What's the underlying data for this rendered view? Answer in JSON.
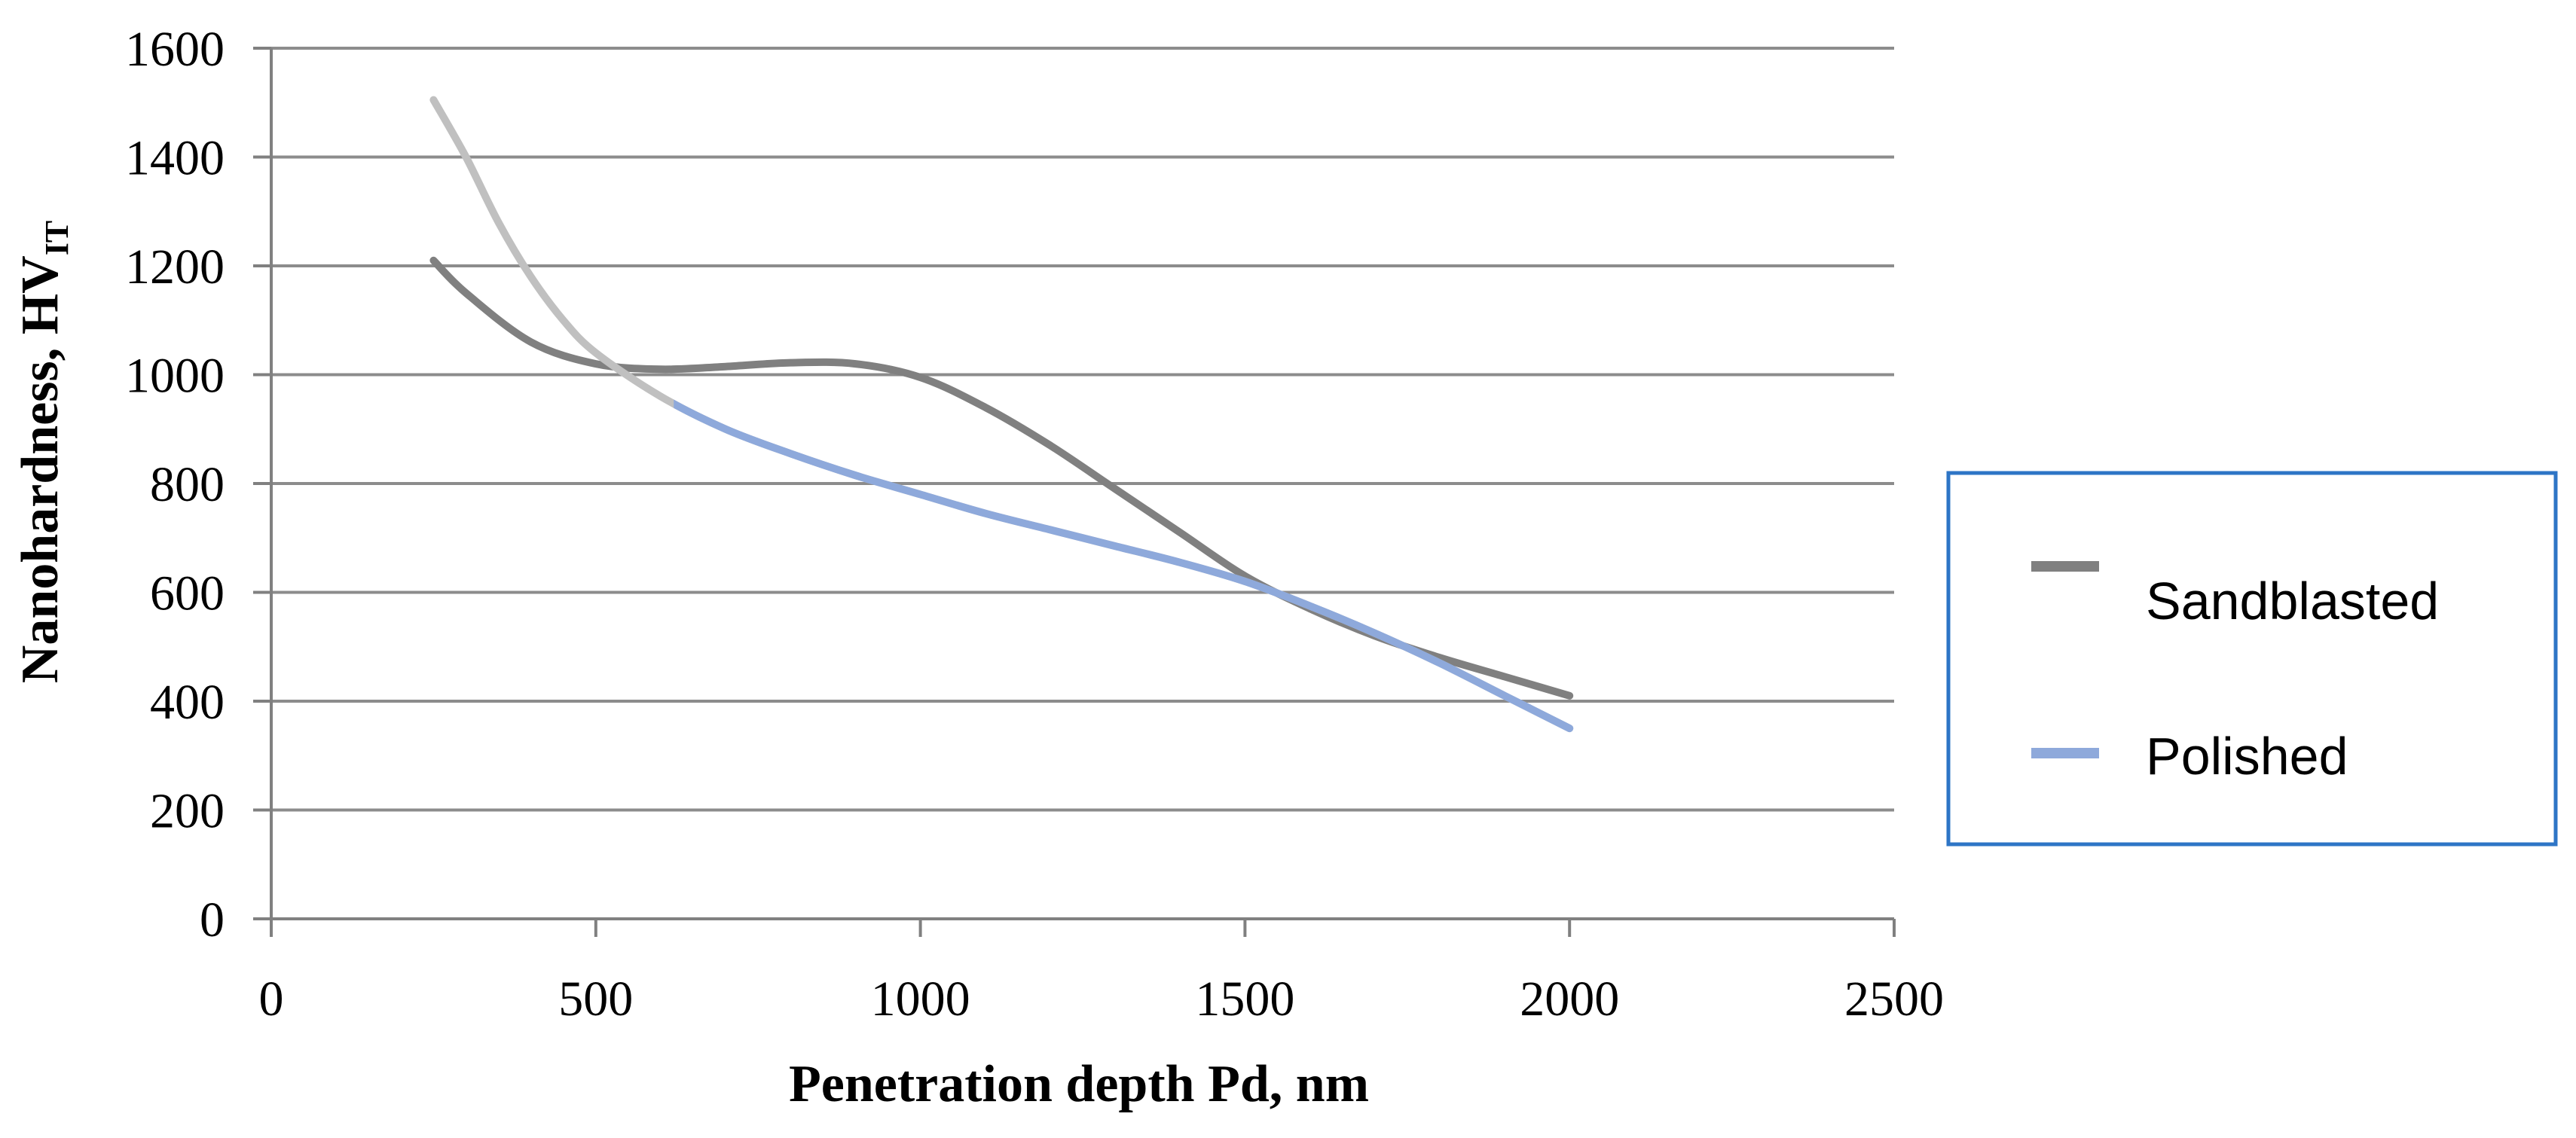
{
  "chart_data": {
    "type": "line",
    "xlabel": "Penetration depth Pd, nm",
    "ylabel_main": "Nanohardness, HV",
    "ylabel_sub": "IT",
    "xlim": [
      0,
      2500
    ],
    "ylim": [
      0,
      1600
    ],
    "x_ticks": [
      0,
      500,
      1000,
      1500,
      2000,
      2500
    ],
    "y_ticks": [
      0,
      200,
      400,
      600,
      800,
      1000,
      1200,
      1400,
      1600
    ],
    "grid": "horizontal",
    "legend_position": "right",
    "series": [
      {
        "name": "Sandblasted",
        "color": "#808080",
        "x": [
          250,
          300,
          400,
          500,
          600,
          700,
          800,
          900,
          1000,
          1100,
          1200,
          1300,
          1400,
          1500,
          1600,
          1700,
          1800,
          1900,
          2000
        ],
        "y": [
          1210,
          1150,
          1060,
          1020,
          1010,
          1015,
          1022,
          1020,
          995,
          940,
          870,
          790,
          710,
          630,
          570,
          520,
          480,
          445,
          410
        ]
      },
      {
        "name": "Polished",
        "color": "#8EA9DB",
        "early_color": "#C0C0C0",
        "x": [
          250,
          300,
          350,
          400,
          450,
          500,
          600,
          700,
          800,
          900,
          1000,
          1100,
          1200,
          1300,
          1400,
          1500,
          1600,
          1700,
          1800,
          1900,
          2000
        ],
        "y": [
          1505,
          1400,
          1280,
          1180,
          1100,
          1040,
          960,
          900,
          855,
          815,
          780,
          745,
          715,
          685,
          655,
          620,
          575,
          525,
          470,
          410,
          350
        ]
      }
    ]
  }
}
